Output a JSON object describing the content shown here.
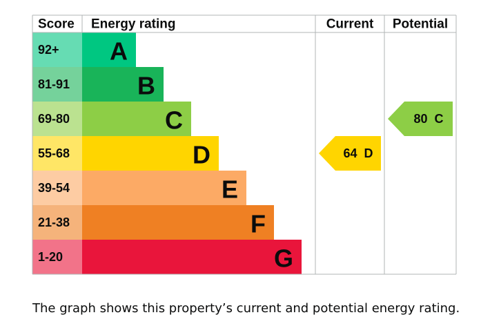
{
  "chart_data": {
    "type": "bar",
    "headers": {
      "score": "Score",
      "rating": "Energy rating",
      "current": "Current",
      "potential": "Potential"
    },
    "bands": [
      {
        "score": "92+",
        "letter": "A",
        "color": "#00c781",
        "score_bg": "#66dcb3"
      },
      {
        "score": "81-91",
        "letter": "B",
        "color": "#19b459",
        "score_bg": "#75d29b"
      },
      {
        "score": "69-80",
        "letter": "C",
        "color": "#8dce46",
        "score_bg": "#bbe290"
      },
      {
        "score": "55-68",
        "letter": "D",
        "color": "#ffd500",
        "score_bg": "#ffe666"
      },
      {
        "score": "39-54",
        "letter": "E",
        "color": "#fcaa65",
        "score_bg": "#fdcca3"
      },
      {
        "score": "21-38",
        "letter": "F",
        "color": "#ef8023",
        "score_bg": "#f5b37b"
      },
      {
        "score": "1-20",
        "letter": "G",
        "color": "#e9153b",
        "score_bg": "#f27389"
      }
    ],
    "current": {
      "value": 64,
      "letter": "D",
      "label": "64  D",
      "color": "#ffd500"
    },
    "potential": {
      "value": 80,
      "letter": "C",
      "label": "80  C",
      "color": "#8dce46"
    }
  },
  "caption": "The graph shows this property’s current and potential energy rating."
}
